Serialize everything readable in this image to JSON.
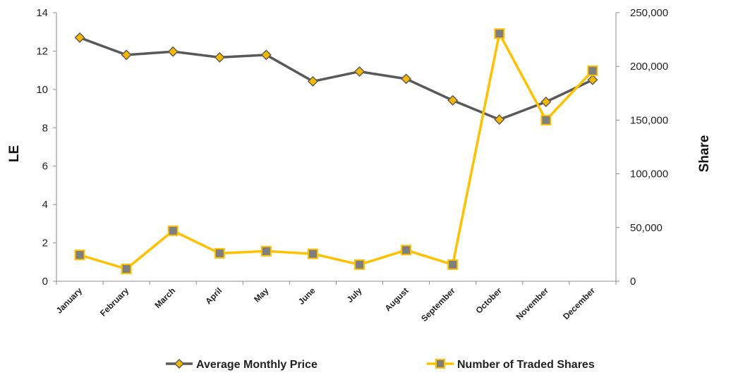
{
  "chart_data": {
    "type": "line",
    "categories": [
      "January",
      "February",
      "March",
      "April",
      "May",
      "June",
      "July",
      "August",
      "September",
      "October",
      "November",
      "December"
    ],
    "series": [
      {
        "name": "Average Monthly Price",
        "axis": "left",
        "color": "#595959",
        "marker_color": "#f5b800",
        "marker": "diamond",
        "values": [
          12.7,
          11.8,
          11.97,
          11.67,
          11.8,
          10.42,
          10.93,
          10.55,
          9.43,
          8.43,
          9.35,
          10.5
        ]
      },
      {
        "name": "Number of Traded Shares",
        "axis": "right",
        "color": "#ffc000",
        "marker_color": "#7f7f7f",
        "marker": "square",
        "values": [
          24500,
          11500,
          47000,
          26000,
          28000,
          25500,
          15500,
          29000,
          15500,
          230500,
          150000,
          196000
        ]
      }
    ],
    "ylabel": "LE",
    "y2label": "Share",
    "ylim": [
      0,
      14
    ],
    "y2lim": [
      0,
      250000
    ],
    "yticks": [
      "0",
      "2",
      "4",
      "6",
      "8",
      "10",
      "12",
      "14"
    ],
    "y2ticks": [
      "0",
      "50,000",
      "100,000",
      "150,000",
      "200,000",
      "250,000"
    ],
    "grid": false,
    "legend": "bottom"
  }
}
